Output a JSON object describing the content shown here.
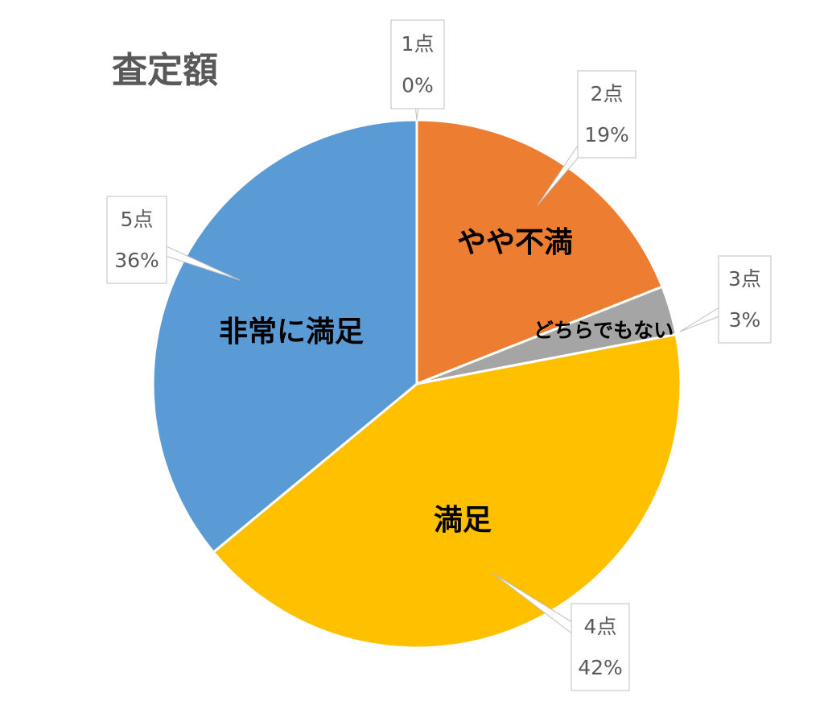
{
  "chart_data": {
    "type": "pie",
    "title": "査定額",
    "categories": [
      "1点",
      "2点",
      "3点",
      "4点",
      "5点"
    ],
    "values": [
      0,
      19,
      3,
      42,
      36
    ],
    "value_labels": [
      "0%",
      "19%",
      "3%",
      "42%",
      "36%"
    ],
    "slice_labels": [
      null,
      "やや不満",
      "どちらでもない",
      "満足",
      "非常に満足"
    ],
    "colors": [
      "#4472c4",
      "#ed7d31",
      "#a5a5a5",
      "#ffc000",
      "#5b9bd5"
    ]
  }
}
